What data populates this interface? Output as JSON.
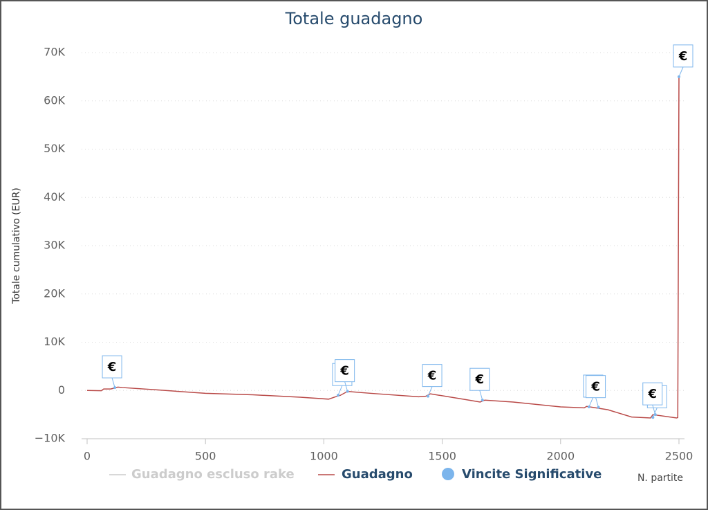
{
  "chart_data": {
    "type": "line",
    "title": "Totale guadagno",
    "y_label": "Totale cumulativo (EUR)",
    "x_label": "N. partite",
    "xlim": [
      0,
      2500
    ],
    "xticks": [
      0,
      500,
      1000,
      1500,
      2000,
      2500
    ],
    "ylim": [
      -10000,
      70000
    ],
    "yticks": [
      {
        "value": -10000,
        "label": "−10K"
      },
      0,
      {
        "value": 10000,
        "label": "10K"
      },
      {
        "value": 20000,
        "label": "20K"
      },
      {
        "value": 30000,
        "label": "30K"
      },
      {
        "value": 40000,
        "label": "40K"
      },
      {
        "value": 50000,
        "label": "50K"
      },
      {
        "value": 60000,
        "label": "60K"
      },
      {
        "value": 70000,
        "label": "70K"
      }
    ],
    "grid": true,
    "series": [
      {
        "name": "Guadagno escluso rake",
        "color": "#cccccc",
        "visible": false
      },
      {
        "name": "Guadagno",
        "color": "#b94a48",
        "x": [
          0,
          60,
          70,
          100,
          130,
          150,
          300,
          500,
          700,
          900,
          1020,
          1050,
          1070,
          1100,
          1200,
          1400,
          1430,
          1450,
          1600,
          1660,
          1680,
          1800,
          2000,
          2100,
          2110,
          2200,
          2300,
          2380,
          2390,
          2490,
          2495,
          2500
        ],
        "values": [
          0,
          -50,
          300,
          300,
          700,
          600,
          100,
          -600,
          -900,
          -1400,
          -1800,
          -1300,
          -1000,
          -200,
          -600,
          -1300,
          -1200,
          -700,
          -1900,
          -2400,
          -2000,
          -2400,
          -3400,
          -3600,
          -3300,
          -4000,
          -5500,
          -5700,
          -5000,
          -5700,
          -5600,
          65000
        ]
      }
    ],
    "flags": {
      "name": "Vincite Significative",
      "color": "#7cb5ec",
      "x": [
        117,
        1060,
        1100,
        1440,
        1670,
        2120,
        2160,
        2390,
        2400,
        2500
      ],
      "values": [
        600,
        -1000,
        -200,
        -1200,
        -2000,
        -3400,
        -3500,
        -5600,
        -5000,
        65000
      ],
      "labels": [
        "€",
        "€",
        "€",
        "€",
        "€",
        "€",
        "€",
        "€",
        "€",
        "€"
      ]
    }
  }
}
